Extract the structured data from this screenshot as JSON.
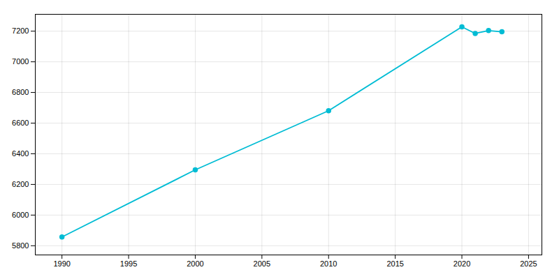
{
  "chart_data": {
    "type": "line",
    "x": [
      1990,
      2000,
      2010,
      2020,
      2021,
      2022,
      2023
    ],
    "values": [
      5857,
      6295,
      6681,
      7228,
      7185,
      7204,
      7196
    ],
    "color": "#00BCD4",
    "marker": "circle",
    "xlim": [
      1988,
      2026
    ],
    "ylim": [
      5740,
      7310
    ],
    "xticks": [
      1990,
      1995,
      2000,
      2005,
      2010,
      2015,
      2020,
      2025
    ],
    "yticks": [
      5800,
      6000,
      6200,
      6400,
      6600,
      6800,
      7000,
      7200
    ],
    "grid": true
  }
}
